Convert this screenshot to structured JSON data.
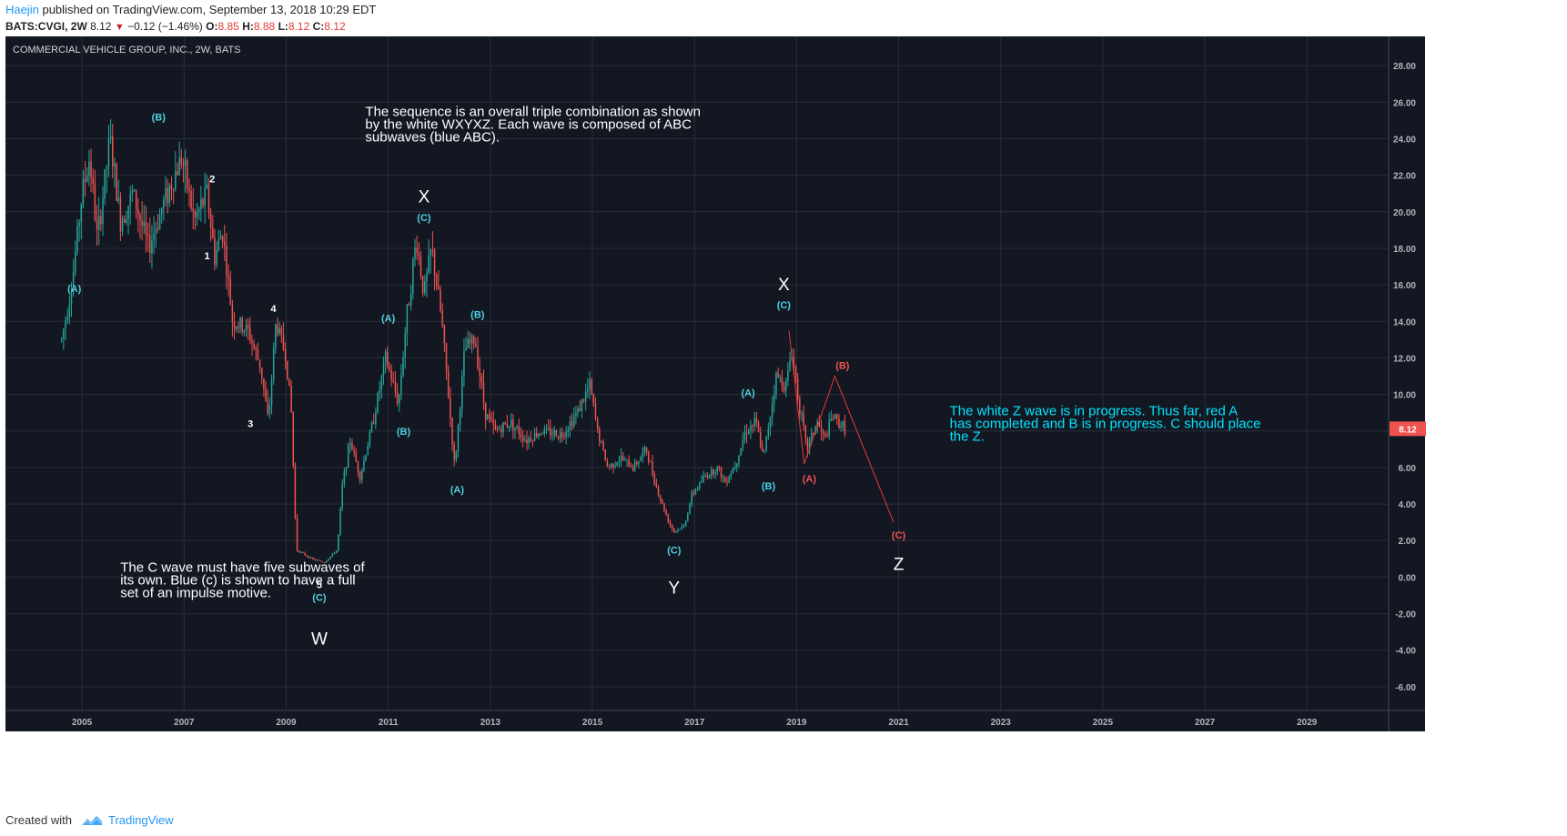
{
  "header": {
    "author": "Haejin",
    "published": " published on TradingView.com, September 13, 2018 10:29 EDT",
    "symbol": "BATS:CVGI, 2W",
    "last": "8.12",
    "change": "−0.12 (−1.46%)",
    "o_label": "O:",
    "o_value": "8.85",
    "h_label": "H:",
    "h_value": "8.88",
    "l_label": "L:",
    "l_value": "8.12",
    "c_label": "C:",
    "c_value": "8.12"
  },
  "footer": {
    "created_with": "Created with",
    "brand": "TradingView"
  },
  "colors": {
    "background": "#131722",
    "grid": "#2a2e39",
    "up": "#26a69a",
    "down": "#ef5350",
    "blue_label": "#4dd0e1",
    "red_label": "#ef5350",
    "white_label": "#ffffff"
  },
  "chart_data": {
    "type": "candlestick",
    "title": "COMMERCIAL VEHICLE GROUP, INC., 2W, BATS",
    "x_range": [
      2003.5,
      2030.6
    ],
    "y_range": [
      -7.3,
      29.6
    ],
    "x_ticks": [
      "2005",
      "2007",
      "2009",
      "2011",
      "2013",
      "2015",
      "2017",
      "2019",
      "2021",
      "2023",
      "2025",
      "2027",
      "2029"
    ],
    "y_ticks": [
      "28.00",
      "26.00",
      "24.00",
      "22.00",
      "20.00",
      "18.00",
      "16.00",
      "14.00",
      "12.00",
      "10.00",
      "8.00",
      "6.00",
      "4.00",
      "2.00",
      "0.00",
      "-2.00",
      "-4.00",
      "-6.00"
    ],
    "last_price_label": "8.12",
    "price_path": [
      [
        2004.6,
        13.0
      ],
      [
        2004.8,
        16.0
      ],
      [
        2005.0,
        21.0
      ],
      [
        2005.15,
        23.0
      ],
      [
        2005.3,
        18.5
      ],
      [
        2005.55,
        24.0
      ],
      [
        2005.75,
        19.5
      ],
      [
        2006.0,
        21.0
      ],
      [
        2006.3,
        18.0
      ],
      [
        2006.6,
        20.5
      ],
      [
        2006.95,
        23.0
      ],
      [
        2007.2,
        19.5
      ],
      [
        2007.45,
        21.0
      ],
      [
        2007.6,
        17.5
      ],
      [
        2007.75,
        19.0
      ],
      [
        2007.95,
        14.0
      ],
      [
        2008.25,
        13.5
      ],
      [
        2008.5,
        11.5
      ],
      [
        2008.65,
        8.5
      ],
      [
        2008.8,
        14.0
      ],
      [
        2009.0,
        12.0
      ],
      [
        2009.1,
        9.0
      ],
      [
        2009.2,
        1.5
      ],
      [
        2009.5,
        1.0
      ],
      [
        2009.75,
        0.8
      ],
      [
        2010.0,
        1.5
      ],
      [
        2010.1,
        5.0
      ],
      [
        2010.25,
        7.5
      ],
      [
        2010.45,
        5.5
      ],
      [
        2010.7,
        8.5
      ],
      [
        2010.95,
        12.0
      ],
      [
        2011.2,
        9.5
      ],
      [
        2011.35,
        14.0
      ],
      [
        2011.55,
        18.5
      ],
      [
        2011.7,
        15.5
      ],
      [
        2011.85,
        18.0
      ],
      [
        2012.05,
        14.0
      ],
      [
        2012.3,
        6.0
      ],
      [
        2012.5,
        12.5
      ],
      [
        2012.7,
        13.0
      ],
      [
        2012.9,
        9.0
      ],
      [
        2013.1,
        8.0
      ],
      [
        2013.4,
        8.5
      ],
      [
        2013.7,
        7.5
      ],
      [
        2014.0,
        8.0
      ],
      [
        2014.4,
        7.8
      ],
      [
        2014.7,
        9.0
      ],
      [
        2014.95,
        10.5
      ],
      [
        2015.1,
        8.0
      ],
      [
        2015.3,
        6.0
      ],
      [
        2015.55,
        6.5
      ],
      [
        2015.8,
        6.0
      ],
      [
        2016.05,
        7.0
      ],
      [
        2016.3,
        4.5
      ],
      [
        2016.5,
        3.0
      ],
      [
        2016.6,
        2.5
      ],
      [
        2016.8,
        2.8
      ],
      [
        2016.95,
        4.5
      ],
      [
        2017.2,
        5.5
      ],
      [
        2017.45,
        6.0
      ],
      [
        2017.6,
        5.2
      ],
      [
        2017.8,
        6.2
      ],
      [
        2018.0,
        8.0
      ],
      [
        2018.2,
        8.5
      ],
      [
        2018.35,
        6.5
      ],
      [
        2018.6,
        11.0
      ],
      [
        2018.8,
        10.5
      ],
      [
        2018.9,
        12.5
      ],
      [
        2019.05,
        9.5
      ],
      [
        2019.2,
        7.0
      ],
      [
        2019.4,
        8.5
      ],
      [
        2019.55,
        7.5
      ],
      [
        2019.7,
        8.8
      ],
      [
        2019.95,
        8.12
      ]
    ],
    "projection": [
      [
        2018.85,
        13.5
      ],
      [
        2019.15,
        6.2
      ],
      [
        2019.75,
        11.0
      ],
      [
        2020.9,
        3.0
      ]
    ],
    "wave_labels": [
      {
        "text": "(B)",
        "x": 2006.5,
        "y": 25.0,
        "color": "blue",
        "size": "small"
      },
      {
        "text": "2",
        "x": 2007.55,
        "y": 21.6,
        "color": "white",
        "size": "small"
      },
      {
        "text": "1",
        "x": 2007.45,
        "y": 17.4,
        "color": "white",
        "size": "small"
      },
      {
        "text": "(A)",
        "x": 2004.85,
        "y": 15.6,
        "color": "blue",
        "size": "small"
      },
      {
        "text": "4",
        "x": 2008.75,
        "y": 14.5,
        "color": "white",
        "size": "small"
      },
      {
        "text": "3",
        "x": 2008.3,
        "y": 8.2,
        "color": "white",
        "size": "small"
      },
      {
        "text": "5",
        "x": 2009.65,
        "y": -0.6,
        "color": "white",
        "size": "small"
      },
      {
        "text": "(C)",
        "x": 2009.65,
        "y": -1.3,
        "color": "blue",
        "size": "small"
      },
      {
        "text": "W",
        "x": 2009.65,
        "y": -3.7,
        "color": "white",
        "size": "large"
      },
      {
        "text": "X",
        "x": 2011.7,
        "y": 20.5,
        "color": "white",
        "size": "large"
      },
      {
        "text": "(C)",
        "x": 2011.7,
        "y": 19.5,
        "color": "blue",
        "size": "small"
      },
      {
        "text": "(A)",
        "x": 2011.0,
        "y": 14.0,
        "color": "blue",
        "size": "small"
      },
      {
        "text": "(B)",
        "x": 2011.3,
        "y": 7.8,
        "color": "blue",
        "size": "small"
      },
      {
        "text": "(B)",
        "x": 2012.75,
        "y": 14.2,
        "color": "blue",
        "size": "small"
      },
      {
        "text": "(A)",
        "x": 2012.35,
        "y": 4.6,
        "color": "blue",
        "size": "small"
      },
      {
        "text": "X",
        "x": 2018.75,
        "y": 15.7,
        "color": "white",
        "size": "large"
      },
      {
        "text": "(C)",
        "x": 2018.75,
        "y": 14.7,
        "color": "blue",
        "size": "small"
      },
      {
        "text": "(A)",
        "x": 2018.05,
        "y": 9.9,
        "color": "blue",
        "size": "small"
      },
      {
        "text": "(B)",
        "x": 2018.45,
        "y": 4.8,
        "color": "blue",
        "size": "small"
      },
      {
        "text": "(C)",
        "x": 2016.6,
        "y": 1.3,
        "color": "blue",
        "size": "small"
      },
      {
        "text": "Y",
        "x": 2016.6,
        "y": -0.9,
        "color": "white",
        "size": "large"
      },
      {
        "text": "(B)",
        "x": 2019.9,
        "y": 11.4,
        "color": "red",
        "size": "small"
      },
      {
        "text": "(A)",
        "x": 2019.25,
        "y": 5.2,
        "color": "red",
        "size": "small"
      },
      {
        "text": "(C)",
        "x": 2021.0,
        "y": 2.1,
        "color": "red",
        "size": "small"
      },
      {
        "text": "Z",
        "x": 2021.0,
        "y": 0.4,
        "color": "white",
        "size": "large"
      }
    ],
    "annotations": [
      {
        "lines": [
          "The sequence is an overall triple combination as shown",
          "by the white WXYXZ. Each wave is composed of ABC",
          "subwaves (blue ABC)."
        ],
        "x": 2010.55,
        "y": 25.25,
        "color": "white"
      },
      {
        "lines": [
          "The C wave must have five subwaves of",
          "its own. Blue (c) is shown to have a full",
          "set of an impulse motive."
        ],
        "x": 2005.75,
        "y": 0.3,
        "color": "white"
      },
      {
        "lines": [
          "The white Z wave is in progress. Thus far, red A",
          "has completed and B is in progress. C should place",
          "the  Z."
        ],
        "x": 2022.0,
        "y": 8.85,
        "color": "cyan"
      }
    ]
  }
}
